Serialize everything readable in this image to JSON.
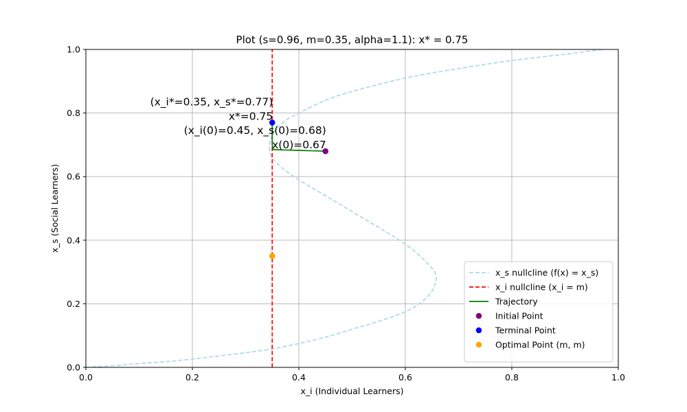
{
  "chart_data": {
    "type": "line",
    "title": "Plot (s=0.96, m=0.35, alpha=1.1): x* = 0.75",
    "xlabel": "x_i (Individual Learners)",
    "ylabel": "x_s (Social Learners)",
    "xlim": [
      0.0,
      1.0
    ],
    "ylim": [
      0.0,
      1.0
    ],
    "xticks": [
      "0.0",
      "0.2",
      "0.4",
      "0.6",
      "0.8",
      "1.0"
    ],
    "yticks": [
      "0.0",
      "0.2",
      "0.4",
      "0.6",
      "0.8",
      "1.0"
    ],
    "grid": true,
    "legend_position": "lower-right",
    "series": [
      {
        "name": "x_s nullcline (f(x) = x_s)",
        "style": "dashed",
        "color": "#add8e6",
        "points": [
          [
            0.0,
            0.0
          ],
          [
            0.05,
            0.005
          ],
          [
            0.1,
            0.012
          ],
          [
            0.15,
            0.018
          ],
          [
            0.2,
            0.026
          ],
          [
            0.25,
            0.036
          ],
          [
            0.3,
            0.046
          ],
          [
            0.35,
            0.058
          ],
          [
            0.4,
            0.075
          ],
          [
            0.45,
            0.095
          ],
          [
            0.5,
            0.12
          ],
          [
            0.55,
            0.145
          ],
          [
            0.6,
            0.175
          ],
          [
            0.63,
            0.205
          ],
          [
            0.65,
            0.24
          ],
          [
            0.658,
            0.275
          ],
          [
            0.655,
            0.3
          ],
          [
            0.64,
            0.33
          ],
          [
            0.61,
            0.375
          ],
          [
            0.57,
            0.42
          ],
          [
            0.52,
            0.47
          ],
          [
            0.46,
            0.53
          ],
          [
            0.4,
            0.59
          ],
          [
            0.36,
            0.64
          ],
          [
            0.345,
            0.68
          ],
          [
            0.35,
            0.73
          ],
          [
            0.37,
            0.77
          ],
          [
            0.4,
            0.8
          ],
          [
            0.45,
            0.84
          ],
          [
            0.5,
            0.868
          ],
          [
            0.6,
            0.91
          ],
          [
            0.7,
            0.94
          ],
          [
            0.8,
            0.965
          ],
          [
            0.9,
            0.985
          ],
          [
            0.97,
            1.0
          ]
        ]
      },
      {
        "name": "x_i nullcline (x_i = m)",
        "style": "dashed",
        "color": "#ff0000",
        "points": [
          [
            0.35,
            0.0
          ],
          [
            0.35,
            1.0
          ]
        ]
      },
      {
        "name": "Trajectory",
        "style": "solid",
        "color": "#008000",
        "points": [
          [
            0.45,
            0.68
          ],
          [
            0.41,
            0.682
          ],
          [
            0.37,
            0.684
          ],
          [
            0.355,
            0.685
          ],
          [
            0.351,
            0.687
          ],
          [
            0.35,
            0.71
          ],
          [
            0.35,
            0.74
          ],
          [
            0.35,
            0.77
          ]
        ]
      },
      {
        "name": "Initial Point",
        "style": "point",
        "color": "#800080",
        "points": [
          [
            0.45,
            0.68
          ]
        ]
      },
      {
        "name": "Terminal Point",
        "style": "point",
        "color": "#0000ff",
        "points": [
          [
            0.35,
            0.77
          ]
        ]
      },
      {
        "name": "Optimal Point (m, m)",
        "style": "point",
        "color": "#ffa500",
        "points": [
          [
            0.35,
            0.35
          ]
        ]
      }
    ],
    "annotations": [
      {
        "lines": [
          "(x_i*=0.35, x_s*=0.77)",
          "x*=0.75"
        ],
        "at": [
          0.35,
          0.77
        ],
        "anchor": "end"
      },
      {
        "lines": [
          "(x_i(0)=0.45, x_s(0)=0.68)",
          "x(0)=0.67"
        ],
        "at": [
          0.45,
          0.68
        ],
        "anchor": "end"
      }
    ]
  }
}
